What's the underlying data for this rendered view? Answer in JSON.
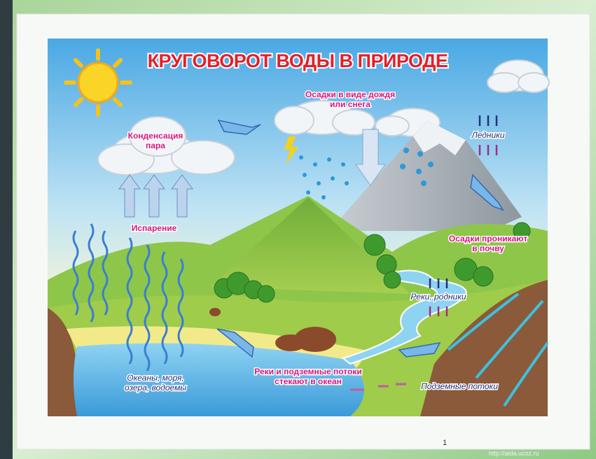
{
  "title": "КРУГОВОРОТ ВОДЫ В ПРИРОДЕ",
  "labels": [
    {
      "lines": [
        "Конденсация",
        "пара"
      ]
    },
    {
      "lines": [
        "Осадки в виде дождя",
        "или снега"
      ]
    },
    {
      "lines": [
        "Ледники"
      ]
    },
    {
      "lines": [
        "Испарение"
      ]
    },
    {
      "lines": [
        "Осадки проникают",
        "в почву"
      ]
    },
    {
      "lines": [
        "Реки, родники"
      ]
    },
    {
      "lines": [
        "Океаны, моря,",
        "озера, водоемы"
      ]
    },
    {
      "lines": [
        "Реки и подземные потоки",
        "стекают в океан"
      ]
    },
    {
      "lines": [
        "Подземные потоки"
      ]
    }
  ],
  "footer": {
    "page": "1",
    "url": "http://aida.ucoz.ru"
  }
}
